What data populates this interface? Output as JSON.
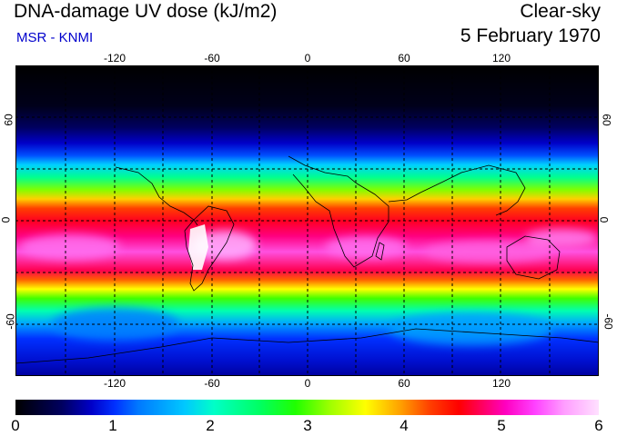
{
  "header": {
    "title": "DNA-damage UV dose (kJ/m2)",
    "source": "MSR - KNMI",
    "condition": "Clear-sky",
    "date": "5 February 1970"
  },
  "map": {
    "projection": "equirectangular",
    "lon_range": [
      -180,
      180
    ],
    "lat_range": [
      -90,
      90
    ],
    "lon_ticks": [
      "-120",
      "-60",
      "0",
      "60",
      "120"
    ],
    "lat_ticks": [
      "60",
      "0",
      "-60"
    ],
    "gridlines": "dashed every 30 degrees"
  },
  "colorbar": {
    "labels": [
      "0",
      "1",
      "2",
      "3",
      "4",
      "5",
      "6"
    ],
    "min": 0,
    "max": 6
  }
}
